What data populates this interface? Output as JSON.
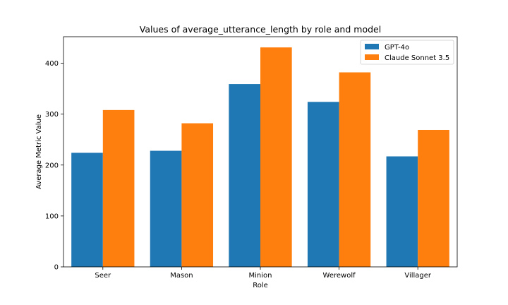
{
  "chart_data": {
    "type": "bar",
    "title": "Values of average_utterance_length by role and model",
    "xlabel": "Role",
    "ylabel": "Average Metric Value",
    "categories": [
      "Seer",
      "Mason",
      "Minion",
      "Werewolf",
      "Villager"
    ],
    "series": [
      {
        "name": "GPT-4o",
        "color": "#1f77b4",
        "values": [
          224,
          228,
          359,
          324,
          217
        ]
      },
      {
        "name": "Claude Sonnet 3.5",
        "color": "#ff7f0e",
        "values": [
          308,
          282,
          431,
          382,
          269
        ]
      }
    ],
    "ylim": [
      0,
      452
    ],
    "yticks": [
      0,
      100,
      200,
      300,
      400
    ],
    "grid": false,
    "legend_position": "top-right"
  }
}
